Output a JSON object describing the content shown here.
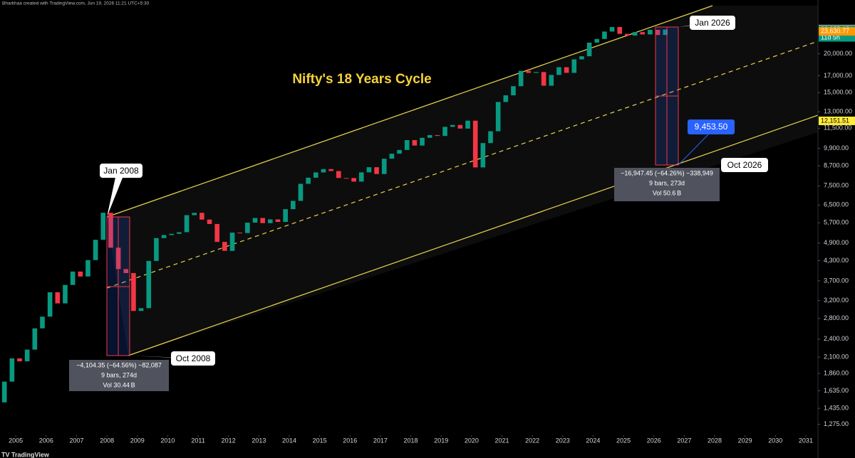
{
  "header": "Bharkhaa created with TradingView.com, Jun 19, 2026 11:21 UTC+5:30",
  "axis_unit": "point",
  "chart_data": {
    "type": "candlestick",
    "title": "Nifty's 18 Years Cycle",
    "x": [
      2004.625,
      2004.875,
      2005.125,
      2005.375,
      2005.625,
      2005.875,
      2006.125,
      2006.375,
      2006.625,
      2006.875,
      2007.125,
      2007.375,
      2007.625,
      2007.875,
      2008.125,
      2008.375,
      2008.625,
      2008.875,
      2009.125,
      2009.375,
      2009.625,
      2009.875,
      2010.125,
      2010.375,
      2010.625,
      2010.875,
      2011.125,
      2011.375,
      2011.625,
      2011.875,
      2012.125,
      2012.375,
      2012.625,
      2012.875,
      2013.125,
      2013.375,
      2013.625,
      2013.875,
      2014.125,
      2014.375,
      2014.625,
      2014.875,
      2015.125,
      2015.375,
      2015.625,
      2015.875,
      2016.125,
      2016.375,
      2016.625,
      2016.875,
      2017.125,
      2017.375,
      2017.625,
      2017.875,
      2018.125,
      2018.375,
      2018.625,
      2018.875,
      2019.125,
      2019.375,
      2019.625,
      2019.875,
      2020.125,
      2020.375,
      2020.625,
      2020.875,
      2021.125,
      2021.375,
      2021.625,
      2021.875,
      2022.125,
      2022.375,
      2022.625,
      2022.875,
      2023.125,
      2023.375,
      2023.625,
      2023.875,
      2024.125,
      2024.375,
      2024.625,
      2024.875,
      2025.125,
      2025.375,
      2025.625,
      2025.875,
      2026.125,
      2026.375
    ],
    "open": [
      1500,
      1750,
      2080,
      2035,
      2220,
      2600,
      2836,
      3400,
      3130,
      3590,
      3966,
      3822,
      4318,
      5021,
      6139,
      4735,
      4040,
      3921,
      2959,
      3021,
      4291,
      5084,
      5201,
      5249,
      5313,
      6030,
      6135,
      5834,
      5647,
      4943,
      4624,
      5296,
      5279,
      5703,
      5905,
      5683,
      5842,
      5735,
      6304,
      6704,
      7611,
      7965,
      8283,
      8491,
      8369,
      7949,
      7946,
      7738,
      8288,
      8611,
      8186,
      9174,
      9521,
      9789,
      10531,
      10114,
      10714,
      10930,
      10863,
      11624,
      11789,
      11474,
      12168,
      8598,
      10302,
      11248,
      13982,
      14691,
      15722,
      17618,
      17354,
      17465,
      15780,
      17094,
      18105,
      17360,
      19189,
      19638,
      21731,
      22327,
      23600,
      24400,
      23200,
      22900,
      23500,
      23100,
      23900,
      23000
    ],
    "close": [
      1750,
      2080,
      2035,
      2220,
      2600,
      2836,
      3400,
      3130,
      3590,
      3966,
      3822,
      4318,
      5021,
      6139,
      4735,
      4040,
      3921,
      2959,
      3021,
      4291,
      5084,
      5201,
      5249,
      5313,
      6030,
      6135,
      5834,
      5647,
      4943,
      4624,
      5296,
      5279,
      5703,
      5905,
      5683,
      5842,
      5735,
      6304,
      6704,
      7611,
      7965,
      8283,
      8491,
      8369,
      7949,
      7946,
      7738,
      8288,
      8611,
      8186,
      9174,
      9521,
      9789,
      10531,
      10114,
      10714,
      10930,
      10863,
      11624,
      11789,
      11474,
      12168,
      8598,
      10302,
      11248,
      13982,
      14691,
      15722,
      17618,
      17354,
      17465,
      15780,
      17094,
      18105,
      17360,
      19189,
      19638,
      21731,
      22327,
      23600,
      24400,
      23200,
      22900,
      23500,
      23100,
      23900,
      23000,
      23955
    ],
    "up_color": "#089981",
    "down_color": "#f23645",
    "log_scale": true,
    "xlim": [
      2004.48,
      2031.4
    ],
    "xticks": [
      2005,
      2006,
      2007,
      2008,
      2009,
      2010,
      2011,
      2012,
      2013,
      2014,
      2015,
      2016,
      2017,
      2018,
      2019,
      2020,
      2021,
      2022,
      2023,
      2024,
      2025,
      2026,
      2027,
      2028,
      2029,
      2030,
      2031
    ],
    "ylim": [
      1200,
      28000
    ],
    "yticks": [
      {
        "value": 1275,
        "label": "1,275.00"
      },
      {
        "value": 1435,
        "label": "1,435.00"
      },
      {
        "value": 1635,
        "label": "1,635.00"
      },
      {
        "value": 1860,
        "label": "1,860.00"
      },
      {
        "value": 2100,
        "label": "2,100.00"
      },
      {
        "value": 2400,
        "label": "2,400.00"
      },
      {
        "value": 2800,
        "label": "2,800.00"
      },
      {
        "value": 3200,
        "label": "3,200.00"
      },
      {
        "value": 3700,
        "label": "3,700.00"
      },
      {
        "value": 4300,
        "label": "4,300.00"
      },
      {
        "value": 4900,
        "label": "4,900.00"
      },
      {
        "value": 5700,
        "label": "5,700.00"
      },
      {
        "value": 6500,
        "label": "6,500.00"
      },
      {
        "value": 7500,
        "label": "7,500.00"
      },
      {
        "value": 8700,
        "label": "8,700.00"
      },
      {
        "value": 9900,
        "label": "9,900.00"
      },
      {
        "value": 11500,
        "label": "11,500.00"
      },
      {
        "value": 13000,
        "label": "13,000.00"
      },
      {
        "value": 15000,
        "label": "15,000.00"
      },
      {
        "value": 17000,
        "label": "17,000.00"
      },
      {
        "value": 20000,
        "label": "20,000.00"
      }
    ],
    "price_labels": [
      {
        "value": 24053.23,
        "label": "24,053.23",
        "color": "#f23645"
      },
      {
        "value": 24006.56,
        "label": "24,006.56",
        "color": "#ffffff"
      },
      {
        "value": 23955.65,
        "label": "23,955.65",
        "color": "#089981"
      },
      {
        "value": 23630.77,
        "label": "23,630.77",
        "color": "#ff9800"
      },
      {
        "value": 12151.51,
        "label": "12,151.51",
        "color": "#ffeb3b"
      }
    ],
    "countdown": "11d 5h",
    "annotations": [
      "Jan 2008",
      "Oct 2008",
      "Jan 2026",
      "Oct 2026"
    ],
    "target_label": "9,453.50",
    "stats": [
      [
        "−4,104.35 (−64.56%) −82,087",
        "9 bars, 274d",
        "Vol 30.44 B"
      ],
      [
        "−16,947.45 (−64.26%) −338,949",
        "9 bars, 273d",
        "Vol 50.6 B"
      ]
    ]
  }
}
